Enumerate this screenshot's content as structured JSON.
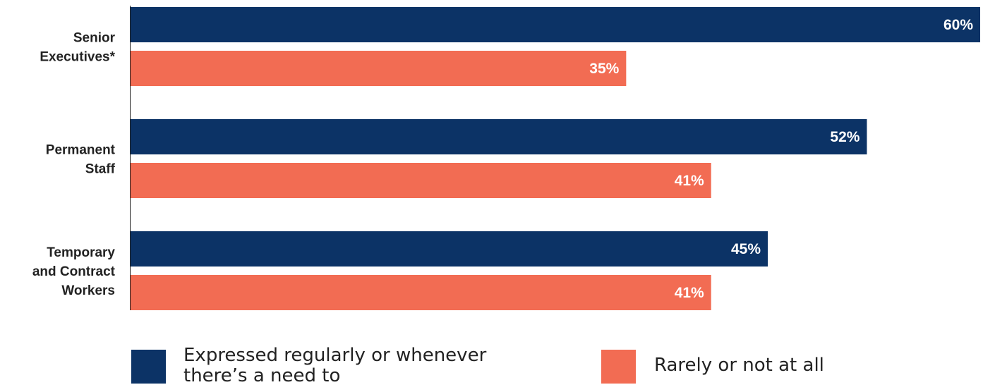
{
  "chart_data": {
    "type": "bar",
    "orientation": "horizontal",
    "categories": [
      "Senior Executives*",
      "Permanent Staff",
      "Temporary and Contract Workers"
    ],
    "category_label_lines": [
      [
        "Senior",
        "Executives*"
      ],
      [
        "Permanent",
        "Staff"
      ],
      [
        "Temporary",
        "and Contract",
        "Workers"
      ]
    ],
    "series": [
      {
        "name": "Expressed regularly or whenever there’s a need to",
        "values": [
          60,
          52,
          45
        ],
        "labels": [
          "60%",
          "52%",
          "45%"
        ],
        "color": "#0c3366"
      },
      {
        "name": "Rarely or not at all",
        "values": [
          35,
          41,
          41
        ],
        "labels": [
          "35%",
          "41%",
          "41%"
        ],
        "color": "#f26c53"
      }
    ],
    "xlim": [
      0,
      60
    ],
    "grid": false,
    "legend_placement": "bottom"
  },
  "legend": {
    "item1_line1": "Expressed regularly or whenever",
    "item1_line2": "there’s a need to",
    "item2": "Rarely or not at all"
  }
}
